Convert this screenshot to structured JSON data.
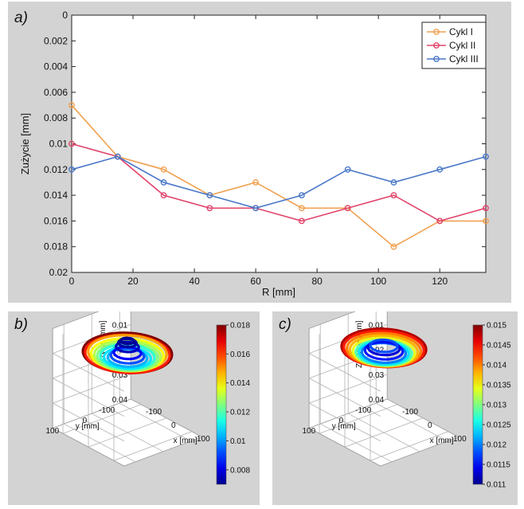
{
  "chart_data": [
    {
      "panel_label": "a)",
      "type": "line",
      "xlabel": "R [mm]",
      "ylabel": "Zużycie [mm]",
      "xlim": [
        0,
        135
      ],
      "ylim": [
        0,
        0.02
      ],
      "y_inverted": true,
      "x_ticks": [
        "0",
        "20",
        "40",
        "60",
        "80",
        "100",
        "120"
      ],
      "x_tick_values": [
        0,
        20,
        40,
        60,
        80,
        100,
        120
      ],
      "y_ticks": [
        "0",
        "0.002",
        "0.004",
        "0.006",
        "0.008",
        "0.01",
        "0.012",
        "0.014",
        "0.016",
        "0.018",
        "0.02"
      ],
      "y_tick_values": [
        0,
        0.002,
        0.004,
        0.006,
        0.008,
        0.01,
        0.012,
        0.014,
        0.016,
        0.018,
        0.02
      ],
      "grid": false,
      "legend_position": "top-right",
      "x": [
        0,
        15,
        30,
        45,
        60,
        75,
        90,
        105,
        120,
        135
      ],
      "series": [
        {
          "name": "Cykl I",
          "color": "#f0a050",
          "values": [
            0.007,
            0.011,
            0.012,
            0.014,
            0.013,
            0.015,
            0.015,
            0.018,
            0.016,
            0.016
          ]
        },
        {
          "name": "Cykl II",
          "color": "#e0446a",
          "values": [
            0.01,
            0.011,
            0.014,
            0.015,
            0.015,
            0.016,
            0.015,
            0.014,
            0.016,
            0.015
          ]
        },
        {
          "name": "Cykl III",
          "color": "#4a78c8",
          "values": [
            0.012,
            0.011,
            0.013,
            0.014,
            0.015,
            0.014,
            0.012,
            0.013,
            0.012,
            0.011
          ]
        }
      ]
    },
    {
      "panel_label": "b)",
      "type": "surface",
      "zlabel": "Zużycie [mm]",
      "xlabel": "x [mm]",
      "ylabel": "y [mm]",
      "z_ticks": [
        "0",
        "0.01",
        "0.02",
        "0.03",
        "0.04"
      ],
      "y_ticks": [
        "100",
        "0",
        "-100"
      ],
      "x_ticks": [
        "-100",
        "0",
        "100"
      ],
      "colorbar_ticks": [
        "0.018",
        "0.016",
        "0.014",
        "0.012",
        "0.01",
        "0.008"
      ],
      "colorbar_range": [
        0.007,
        0.018
      ]
    },
    {
      "panel_label": "c)",
      "type": "surface",
      "zlabel": "Zużycie [mm]",
      "xlabel": "x [mm]",
      "ylabel": "y [mm]",
      "z_ticks": [
        "0",
        "0.01",
        "0.02",
        "0.03",
        "0.04"
      ],
      "y_ticks": [
        "100",
        "0",
        "-100"
      ],
      "x_ticks": [
        "-100",
        "0",
        "100"
      ],
      "colorbar_ticks": [
        "0.015",
        "0.0145",
        "0.014",
        "0.0135",
        "0.013",
        "0.0125",
        "0.012",
        "0.0115",
        "0.011"
      ],
      "colorbar_range": [
        0.011,
        0.015
      ]
    }
  ]
}
